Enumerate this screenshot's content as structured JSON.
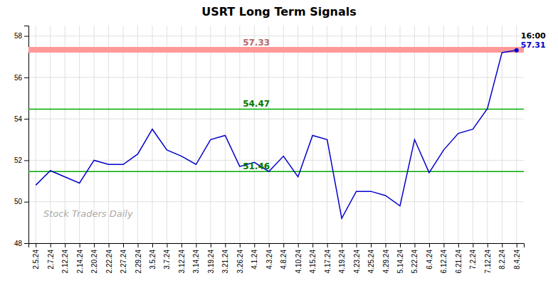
{
  "chart_data": {
    "type": "line",
    "title": "USRT Long Term Signals",
    "categories": [
      "2.5.24",
      "2.7.24",
      "2.12.24",
      "2.14.24",
      "2.20.24",
      "2.22.24",
      "2.27.24",
      "2.29.24",
      "3.5.24",
      "3.7.24",
      "3.12.24",
      "3.14.24",
      "3.19.24",
      "3.21.24",
      "3.26.24",
      "4.1.24",
      "4.3.24",
      "4.8.24",
      "4.10.24",
      "4.15.24",
      "4.17.24",
      "4.19.24",
      "4.23.24",
      "4.25.24",
      "4.29.24",
      "5.14.24",
      "5.22.24",
      "6.4.24",
      "6.12.24",
      "6.21.24",
      "7.2.24",
      "7.12.24",
      "8.2.24",
      "8.4.24"
    ],
    "series": [
      {
        "values": [
          50.8,
          51.5,
          51.2,
          50.9,
          52.0,
          51.8,
          51.8,
          52.3,
          53.5,
          52.5,
          52.2,
          51.8,
          53.0,
          53.2,
          51.7,
          51.9,
          51.46,
          52.2,
          51.2,
          53.2,
          53.0,
          49.2,
          50.5,
          50.5,
          50.3,
          49.8,
          53.0,
          51.4,
          52.5,
          53.3,
          53.5,
          54.5,
          57.2,
          57.31
        ],
        "color": "#0000cc"
      }
    ],
    "hlines": [
      {
        "value": 57.33,
        "label": "57.33",
        "color": "#ff9999"
      },
      {
        "value": 54.47,
        "label": "54.47",
        "color": "#00aa00"
      },
      {
        "value": 51.46,
        "label": "51.46",
        "color": "#00aa00"
      }
    ],
    "annotations": [
      {
        "text": "16:00"
      },
      {
        "text": "57.31",
        "value": 57.31
      }
    ],
    "watermark": "Stock Traders Daily",
    "ylim": [
      48,
      58.5
    ],
    "yticks": [
      48,
      50,
      52,
      54,
      56,
      58
    ],
    "grid": true
  }
}
